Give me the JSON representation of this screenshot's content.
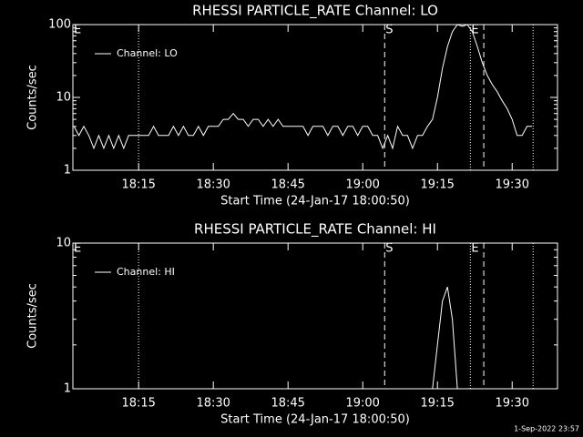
{
  "chart_data": [
    {
      "type": "line",
      "title": "RHESSI PARTICLE_RATE Channel: LO",
      "xlabel": "Start Time (24-Jan-17 18:00:50)",
      "ylabel": "Counts/sec",
      "yscale": "log",
      "ylim": [
        1,
        100
      ],
      "yticks": [
        1,
        10,
        100
      ],
      "xlim": [
        1.8,
        99.1
      ],
      "xticks": [
        {
          "value": 15,
          "label": "18:15"
        },
        {
          "value": 30,
          "label": "18:30"
        },
        {
          "value": 45,
          "label": "18:45"
        },
        {
          "value": 60,
          "label": "19:00"
        },
        {
          "value": 75,
          "label": "19:15"
        },
        {
          "value": 90,
          "label": "19:30"
        }
      ],
      "legend": "upper left",
      "vlines": [
        {
          "x": 1.8,
          "style": "dotted",
          "label": "E"
        },
        {
          "x": 15,
          "style": "dotted"
        },
        {
          "x": 64.4,
          "style": "dashed",
          "label": "S"
        },
        {
          "x": 81.6,
          "style": "dotted",
          "label": "E"
        },
        {
          "x": 84.3,
          "style": "dashed"
        },
        {
          "x": 94.2,
          "style": "dotted"
        }
      ],
      "x": [
        2,
        3,
        4,
        5,
        6,
        7,
        8,
        9,
        10,
        11,
        12,
        13,
        14,
        15,
        16,
        17,
        18,
        19,
        20,
        21,
        22,
        23,
        24,
        25,
        26,
        27,
        28,
        29,
        30,
        31,
        32,
        33,
        34,
        35,
        36,
        37,
        38,
        39,
        40,
        41,
        42,
        43,
        44,
        45,
        46,
        47,
        48,
        49,
        50,
        51,
        52,
        53,
        54,
        55,
        56,
        57,
        58,
        59,
        60,
        61,
        62,
        63,
        64,
        65,
        66,
        67,
        68,
        69,
        70,
        71,
        72,
        73,
        74,
        75,
        76,
        77,
        78,
        79,
        80,
        81,
        82,
        83,
        84,
        85,
        86,
        87,
        88,
        89,
        90,
        91,
        92,
        93,
        94
      ],
      "series": [
        {
          "name": "Channel: LO",
          "color": "#ffffff",
          "values": [
            4,
            3,
            4,
            3,
            2,
            3,
            2,
            3,
            2,
            3,
            2,
            3,
            3,
            3,
            3,
            3,
            4,
            3,
            3,
            3,
            4,
            3,
            4,
            3,
            3,
            4,
            3,
            4,
            4,
            4,
            5,
            5,
            6,
            5,
            5,
            4,
            5,
            5,
            4,
            5,
            4,
            5,
            4,
            4,
            4,
            4,
            4,
            3,
            4,
            4,
            4,
            3,
            4,
            4,
            3,
            4,
            4,
            3,
            4,
            4,
            3,
            3,
            2,
            3,
            2,
            4,
            3,
            3,
            2,
            3,
            3,
            4,
            5,
            10,
            25,
            50,
            80,
            100,
            95,
            100,
            80,
            50,
            30,
            20,
            15,
            12,
            9,
            7,
            5,
            3,
            3,
            4,
            4
          ]
        }
      ]
    },
    {
      "type": "line",
      "title": "RHESSI PARTICLE_RATE Channel: HI",
      "xlabel": "Start Time (24-Jan-17 18:00:50)",
      "ylabel": "Counts/sec",
      "yscale": "log",
      "ylim": [
        1,
        10
      ],
      "yticks": [
        1,
        10
      ],
      "xlim": [
        1.8,
        99.1
      ],
      "xticks": [
        {
          "value": 15,
          "label": "18:15"
        },
        {
          "value": 30,
          "label": "18:30"
        },
        {
          "value": 45,
          "label": "18:45"
        },
        {
          "value": 60,
          "label": "19:00"
        },
        {
          "value": 75,
          "label": "19:15"
        },
        {
          "value": 90,
          "label": "19:30"
        }
      ],
      "legend": "upper left",
      "vlines": [
        {
          "x": 1.8,
          "style": "dotted",
          "label": "E"
        },
        {
          "x": 15,
          "style": "dotted"
        },
        {
          "x": 64.4,
          "style": "dashed",
          "label": "S"
        },
        {
          "x": 81.6,
          "style": "dotted",
          "label": "E"
        },
        {
          "x": 84.3,
          "style": "dashed"
        },
        {
          "x": 94.2,
          "style": "dotted"
        }
      ],
      "x": [
        74,
        75,
        76,
        77,
        78,
        79
      ],
      "series": [
        {
          "name": "Channel: HI",
          "color": "#ffffff",
          "values": [
            1,
            2,
            4,
            5,
            3,
            1
          ]
        }
      ]
    }
  ],
  "footer": "1-Sep-2022 23:57"
}
